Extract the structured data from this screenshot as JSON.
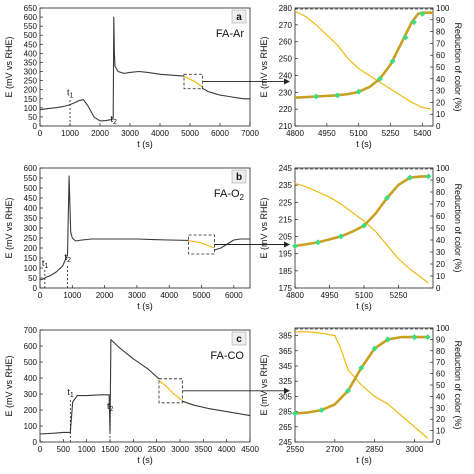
{
  "chart_data": [
    {
      "id": "a-left",
      "type": "line",
      "panel_letter": "a",
      "panel_label": "FA-Ar",
      "xlabel": "t (s)",
      "ylabel": "E (mV vs RHE)",
      "xlim": [
        0,
        7000
      ],
      "ylim": [
        0,
        650
      ],
      "xticks": [
        0,
        1000,
        2000,
        3000,
        4000,
        5000,
        6000,
        7000
      ],
      "yticks": [
        0,
        50,
        100,
        150,
        200,
        250,
        300,
        350,
        400,
        450,
        500,
        550,
        600,
        650
      ],
      "annotations": [
        {
          "label": "t1",
          "x": 1000,
          "y": 145
        },
        {
          "label": "t2",
          "x": 2450,
          "y": 0
        }
      ],
      "highlight": {
        "x_start": 4800,
        "x_end": 5420,
        "y_min": 205,
        "y_max": 285
      },
      "series": [
        {
          "color": "#3a3a3a",
          "x": [
            0,
            200,
            500,
            700,
            850,
            1000,
            1150,
            1300,
            1450,
            1600,
            1800,
            2000,
            2200,
            2380,
            2420,
            2440,
            2460,
            2480,
            2500,
            2600,
            2800,
            3000,
            3300,
            3600,
            4000,
            4400,
            4800
          ],
          "y": [
            90,
            95,
            100,
            105,
            110,
            118,
            128,
            140,
            145,
            110,
            50,
            28,
            30,
            35,
            38,
            40,
            600,
            400,
            330,
            300,
            290,
            295,
            300,
            295,
            285,
            280,
            275
          ]
        },
        {
          "color": "#f0b400",
          "x": [
            4800,
            4900,
            5000,
            5100,
            5200,
            5300,
            5400
          ],
          "y": [
            275,
            265,
            258,
            250,
            240,
            228,
            215
          ]
        },
        {
          "color": "#3a3a3a",
          "x": [
            5400,
            5500,
            5600,
            5800,
            6000,
            6200,
            6400,
            6600,
            6800,
            7000
          ],
          "y": [
            208,
            200,
            190,
            180,
            170,
            165,
            160,
            155,
            150,
            150
          ]
        }
      ]
    },
    {
      "id": "a-right",
      "type": "line",
      "xlabel": "t (s)",
      "ylabel": "E (mV vs RHE)",
      "ylabel_right": "Reduction of color (%)",
      "xlim": [
        4800,
        5450
      ],
      "ylim": [
        210,
        280
      ],
      "ylim_right": [
        0,
        100
      ],
      "xticks": [
        4800,
        4950,
        5100,
        5250,
        5400
      ],
      "yticks": [
        210,
        220,
        230,
        240,
        250,
        260,
        270,
        280
      ],
      "yticks_right": [
        0,
        10,
        20,
        30,
        40,
        50,
        60,
        70,
        80,
        90,
        100
      ],
      "series": [
        {
          "axis": "left",
          "color": "#f0b400",
          "x": [
            4800,
            4850,
            4900,
            4950,
            5000,
            5050,
            5100,
            5150,
            5200,
            5250,
            5300,
            5350,
            5400,
            5440
          ],
          "y": [
            278,
            275,
            270,
            264,
            258,
            250,
            244,
            240,
            236,
            232,
            228,
            224,
            221,
            220
          ]
        },
        {
          "axis": "right",
          "color": "#c8a020",
          "x": [
            4800,
            4900,
            5000,
            5050,
            5100,
            5150,
            5200,
            5250,
            5300,
            5350,
            5380,
            5400,
            5450
          ],
          "y": [
            24,
            25,
            26,
            27,
            29,
            33,
            40,
            52,
            70,
            88,
            95,
            96,
            96
          ]
        }
      ],
      "markers": {
        "axis": "right",
        "color": "#3ddc84",
        "x": [
          4900,
          5000,
          5100,
          5200,
          5260,
          5320,
          5360,
          5400
        ],
        "y": [
          25,
          26,
          29,
          40,
          55,
          75,
          88,
          95
        ]
      }
    },
    {
      "id": "b-left",
      "type": "line",
      "panel_letter": "b",
      "panel_label": "FA-O2",
      "xlabel": "t (s)",
      "ylabel": "E (mV vs RHE)",
      "xlim": [
        0,
        6500
      ],
      "ylim": [
        0,
        600
      ],
      "xticks": [
        0,
        1000,
        2000,
        3000,
        4000,
        5000,
        6000
      ],
      "yticks": [
        0,
        50,
        100,
        150,
        200,
        250,
        300,
        350,
        400,
        450,
        500,
        550,
        600
      ],
      "annotations": [
        {
          "label": "t1",
          "x": 150,
          "y": 90
        },
        {
          "label": "t2",
          "x": 850,
          "y": 120
        }
      ],
      "highlight": {
        "x_start": 4600,
        "x_end": 5400,
        "y_min": 170,
        "y_max": 265
      },
      "series": [
        {
          "color": "#3a3a3a",
          "x": [
            0,
            100,
            200,
            300,
            500,
            700,
            850,
            900,
            950,
            1000,
            1100,
            1300,
            1600,
            2000,
            2500,
            3000,
            3500,
            4000,
            4600
          ],
          "y": [
            40,
            45,
            55,
            60,
            80,
            110,
            165,
            560,
            280,
            250,
            235,
            240,
            245,
            245,
            245,
            245,
            242,
            240,
            238
          ]
        },
        {
          "color": "#f0b400",
          "x": [
            4600,
            4800,
            5000,
            5200,
            5400
          ],
          "y": [
            236,
            232,
            225,
            212,
            200
          ]
        },
        {
          "color": "#3a3a3a",
          "x": [
            5400,
            5600,
            5800,
            6000,
            6200,
            6400,
            6500
          ],
          "y": [
            190,
            200,
            220,
            240,
            245,
            245,
            245
          ]
        }
      ]
    },
    {
      "id": "b-right",
      "type": "line",
      "xlabel": "t (s)",
      "ylabel": "E (mV vs RHE)",
      "ylabel_right": "Reduction of color (%)",
      "xlim": [
        4800,
        5400
      ],
      "ylim": [
        175,
        245
      ],
      "ylim_right": [
        0,
        100
      ],
      "xticks": [
        4800,
        4950,
        5100,
        5250
      ],
      "yticks": [
        175,
        185,
        195,
        205,
        215,
        225,
        235,
        245
      ],
      "yticks_right": [
        0,
        10,
        20,
        30,
        40,
        50,
        60,
        70,
        80,
        90,
        100
      ],
      "series": [
        {
          "axis": "left",
          "color": "#f0b400",
          "x": [
            4800,
            4850,
            4900,
            4950,
            5000,
            5050,
            5100,
            5150,
            5200,
            5250,
            5300,
            5350,
            5380
          ],
          "y": [
            236,
            234,
            231,
            228,
            224,
            219,
            214,
            208,
            200,
            192,
            186,
            181,
            178
          ]
        },
        {
          "axis": "right",
          "color": "#c8a020",
          "x": [
            4800,
            4900,
            5000,
            5050,
            5100,
            5150,
            5200,
            5250,
            5300,
            5350,
            5380
          ],
          "y": [
            35,
            38,
            43,
            47,
            52,
            62,
            75,
            86,
            92,
            93,
            93
          ]
        }
      ],
      "markers": {
        "axis": "right",
        "color": "#3ddc84",
        "x": [
          4800,
          4900,
          5000,
          5100,
          5200,
          5300,
          5380
        ],
        "y": [
          35,
          38,
          43,
          52,
          75,
          92,
          93
        ]
      }
    },
    {
      "id": "c-left",
      "type": "line",
      "panel_letter": "c",
      "panel_label": "FA-CO",
      "xlabel": "t (s)",
      "ylabel": "E (mV vs RHE)",
      "xlim": [
        0,
        4500
      ],
      "ylim": [
        0,
        700
      ],
      "xticks": [
        0,
        500,
        1000,
        1500,
        2000,
        2500,
        3000,
        3500,
        4000,
        4500
      ],
      "yticks": [
        0,
        100,
        200,
        300,
        400,
        500,
        600,
        700
      ],
      "annotations": [
        {
          "label": "t1",
          "x": 650,
          "y": 270
        },
        {
          "label": "t2",
          "x": 1500,
          "y": 180
        }
      ],
      "highlight": {
        "x_start": 2550,
        "x_end": 3050,
        "y_min": 245,
        "y_max": 395
      },
      "series": [
        {
          "color": "#3a3a3a",
          "x": [
            0,
            300,
            500,
            650,
            700,
            800,
            1000,
            1300,
            1480,
            1500,
            1520,
            1700,
            2000,
            2300,
            2550
          ],
          "y": [
            50,
            55,
            60,
            60,
            250,
            290,
            290,
            295,
            295,
            60,
            640,
            590,
            520,
            460,
            395
          ]
        },
        {
          "color": "#f0b400",
          "x": [
            2550,
            2700,
            2850,
            3000,
            3050
          ],
          "y": [
            385,
            350,
            305,
            270,
            260
          ]
        },
        {
          "color": "#3a3a3a",
          "x": [
            3050,
            3300,
            3600,
            3900,
            4200,
            4500
          ],
          "y": [
            255,
            230,
            210,
            195,
            180,
            165
          ]
        }
      ]
    },
    {
      "id": "c-right",
      "type": "line",
      "xlabel": "t (s)",
      "ylabel": "E (mV vs RHE)",
      "ylabel_right": "Reduction of color (%)",
      "xlim": [
        2550,
        3070
      ],
      "ylim": [
        245,
        395
      ],
      "ylim_right": [
        0,
        100
      ],
      "xticks": [
        2550,
        2700,
        2850,
        3000
      ],
      "yticks": [
        245,
        265,
        285,
        305,
        325,
        345,
        365,
        385
      ],
      "yticks_right": [
        0,
        10,
        20,
        30,
        40,
        50,
        60,
        70,
        80,
        90,
        100
      ],
      "series": [
        {
          "axis": "left",
          "color": "#f0b400",
          "x": [
            2550,
            2600,
            2650,
            2700,
            2720,
            2750,
            2800,
            2850,
            2900,
            2950,
            3000,
            3050
          ],
          "y": [
            390,
            390,
            388,
            385,
            370,
            340,
            320,
            305,
            295,
            280,
            265,
            250
          ]
        },
        {
          "axis": "right",
          "color": "#c8a020",
          "x": [
            2550,
            2600,
            2650,
            2700,
            2750,
            2800,
            2850,
            2900,
            2950,
            3000,
            3050
          ],
          "y": [
            25,
            26,
            28,
            33,
            45,
            65,
            82,
            90,
            92,
            92,
            92
          ]
        }
      ],
      "markers": {
        "axis": "right",
        "color": "#3ddc84",
        "x": [
          2550,
          2650,
          2750,
          2800,
          2850,
          2900,
          3000,
          3050
        ],
        "y": [
          25,
          28,
          45,
          65,
          82,
          90,
          92,
          92
        ]
      }
    }
  ]
}
